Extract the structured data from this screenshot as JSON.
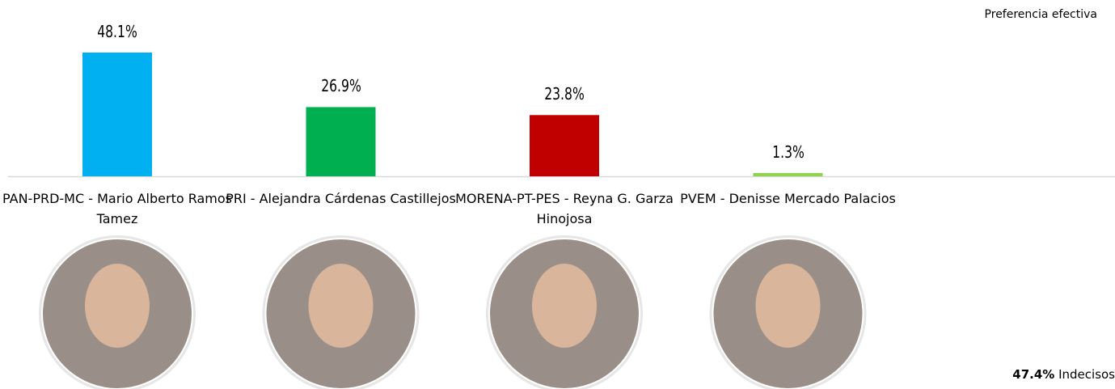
{
  "chart_data": {
    "type": "bar",
    "subtitle": "Preferencia efectiva",
    "categories": [
      "PAN-PRD-MC - Mario Alberto Ramos Tamez",
      "PRI - Alejandra Cárdenas Castillejos",
      "MORENA-PT-PES - Reyna G. Garza Hinojosa",
      "PVEM - Denisse Mercado Palacios"
    ],
    "values": [
      48.1,
      26.9,
      23.8,
      1.3
    ],
    "value_labels": [
      "48.1%",
      "26.9%",
      "23.8%",
      "1.3%"
    ],
    "colors": [
      "#00b0f0",
      "#00b050",
      "#c00000",
      "#92d050"
    ],
    "undecided": {
      "value": 47.4,
      "label": "47.4%",
      "text": "Indecisos"
    }
  }
}
